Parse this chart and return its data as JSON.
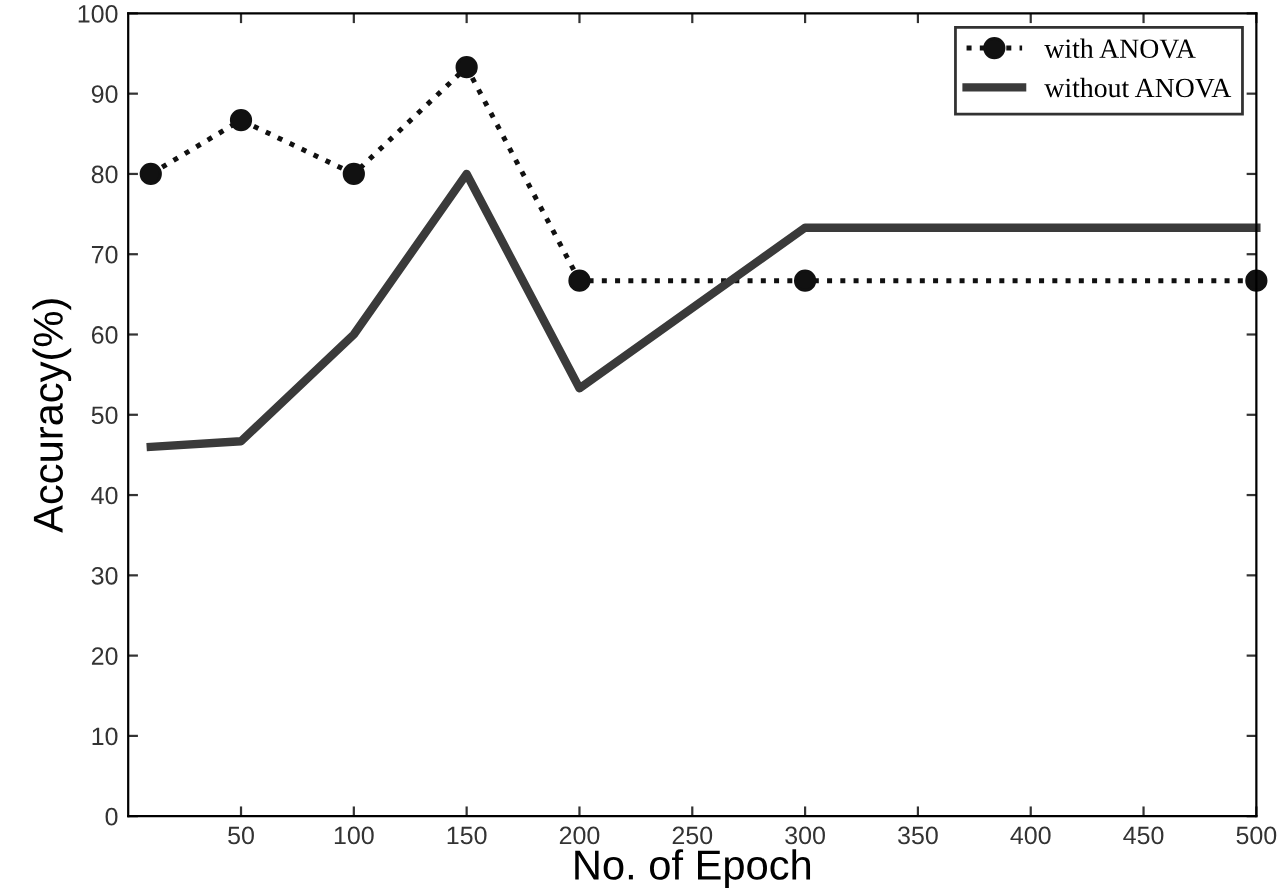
{
  "chart_data": {
    "type": "line",
    "xlabel": "No. of Epoch",
    "ylabel": "Accuracy(%)",
    "xlim": [
      0,
      500
    ],
    "xticks": [
      50,
      100,
      150,
      200,
      250,
      300,
      350,
      400,
      450,
      500
    ],
    "ylim": [
      0,
      100
    ],
    "yticks": [
      0,
      10,
      20,
      30,
      40,
      50,
      60,
      70,
      80,
      90,
      100
    ],
    "grid": false,
    "legend": "top right",
    "series": [
      {
        "name": "with ANOVA",
        "color": "#111111",
        "x": [
          10,
          50,
          100,
          150,
          200,
          300,
          500
        ],
        "values": [
          80,
          86.7,
          80,
          93.3,
          66.7,
          66.7,
          66.7
        ],
        "marker": "circle",
        "line_style": "dotted"
      },
      {
        "name": "without ANOVA",
        "color": "#3a3a3a",
        "x": [
          10,
          50,
          100,
          150,
          200,
          300,
          500
        ],
        "values": [
          46,
          46.7,
          60,
          80,
          53.3,
          73.3,
          73.3
        ],
        "marker": "none",
        "line_style": "solid"
      }
    ]
  }
}
